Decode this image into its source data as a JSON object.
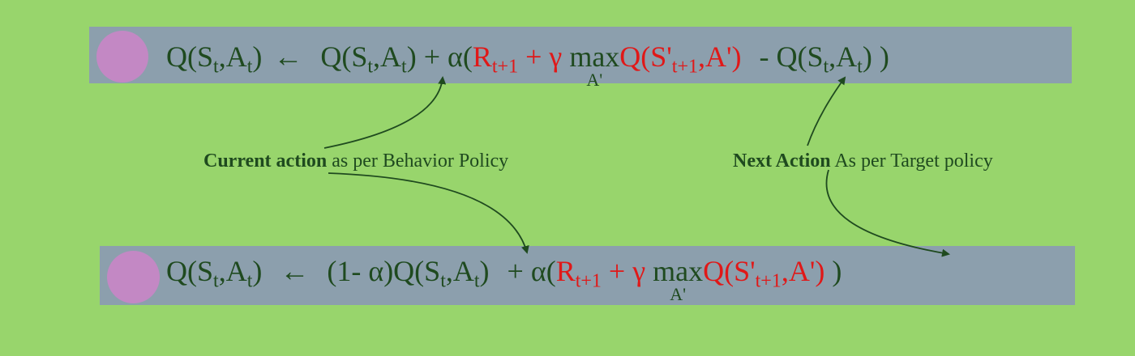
{
  "equation_top": {
    "lhs": "Q(S",
    "lhs_sub": "t",
    "lhs_a": ",A",
    "lhs_a_sub": "t",
    "lhs_close": ")",
    "arrow": "←",
    "q1": "Q(S",
    "q1_sub": "t",
    "q1_a": ",A",
    "q1_a_sub": "t",
    "q1_close": ")",
    "plus_alpha": "+ α(",
    "r": "R",
    "r_sub": "t+1",
    "plus_gamma": "+ γ",
    "max": "max",
    "max_sub": "A'",
    "q2": "Q(S'",
    "q2_sub": "t+1",
    "q2_a": ",A')",
    "minus": "- Q(S",
    "q3_sub": "t",
    "q3_a": ",A",
    "q3_a_sub": "t",
    "q3_close": ") )"
  },
  "equation_bottom": {
    "lhs": "Q(S",
    "lhs_sub": "t",
    "lhs_a": ",A",
    "lhs_a_sub": "t",
    "lhs_close": ")",
    "arrow": "←",
    "one_minus": "(1- α)Q(S",
    "q1_sub": "t",
    "q1_a": ",A",
    "q1_a_sub": "t",
    "q1_close": ")",
    "plus_alpha": "+ α(",
    "r": "R",
    "r_sub": "t+1",
    "plus_gamma": "+ γ",
    "max": "max",
    "max_sub": "A'",
    "q2": "Q(S'",
    "q2_sub": "t+1",
    "q2_a": ",A')",
    "close": ")"
  },
  "annotations": {
    "left_bold": "Current action",
    "left_rest": " as per Behavior Policy",
    "right_bold": "Next Action",
    "right_rest": " As per Target policy"
  },
  "colors": {
    "background": "#98d56c",
    "band": "#8c9fad",
    "circle": "#c388c4",
    "text": "#1f4a1f",
    "highlight": "#e01818"
  }
}
